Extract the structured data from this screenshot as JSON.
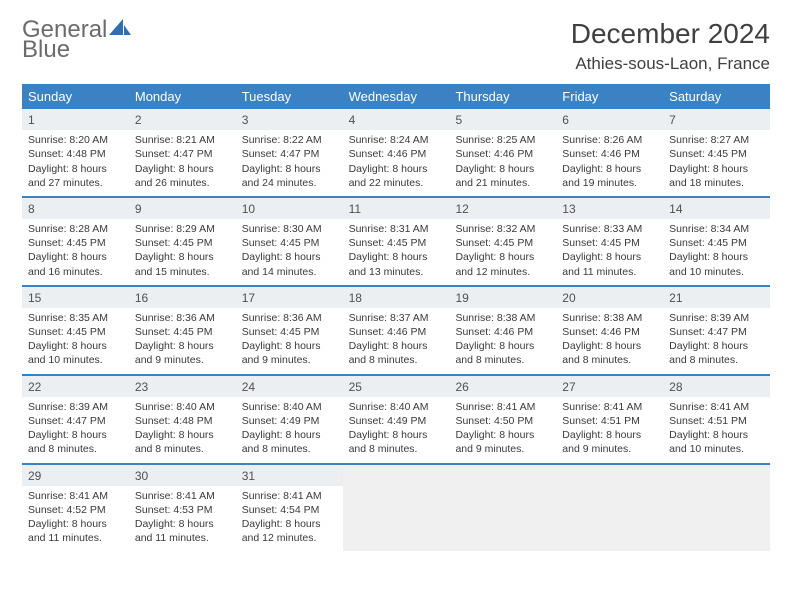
{
  "logo": {
    "text1": "General",
    "text2": "Blue"
  },
  "title": "December 2024",
  "location": "Athies-sous-Laon, France",
  "colors": {
    "header_bg": "#3b82c4",
    "header_text": "#ffffff",
    "daynum_bg": "#eceff1",
    "week_divider": "#3b82c4",
    "text": "#3a3a3a",
    "logo_gray": "#6b6b6b",
    "logo_blue": "#3b7bbf"
  },
  "day_labels": [
    "Sunday",
    "Monday",
    "Tuesday",
    "Wednesday",
    "Thursday",
    "Friday",
    "Saturday"
  ],
  "weeks": [
    [
      {
        "n": "1",
        "sr": "Sunrise: 8:20 AM",
        "ss": "Sunset: 4:48 PM",
        "dl": "Daylight: 8 hours and 27 minutes."
      },
      {
        "n": "2",
        "sr": "Sunrise: 8:21 AM",
        "ss": "Sunset: 4:47 PM",
        "dl": "Daylight: 8 hours and 26 minutes."
      },
      {
        "n": "3",
        "sr": "Sunrise: 8:22 AM",
        "ss": "Sunset: 4:47 PM",
        "dl": "Daylight: 8 hours and 24 minutes."
      },
      {
        "n": "4",
        "sr": "Sunrise: 8:24 AM",
        "ss": "Sunset: 4:46 PM",
        "dl": "Daylight: 8 hours and 22 minutes."
      },
      {
        "n": "5",
        "sr": "Sunrise: 8:25 AM",
        "ss": "Sunset: 4:46 PM",
        "dl": "Daylight: 8 hours and 21 minutes."
      },
      {
        "n": "6",
        "sr": "Sunrise: 8:26 AM",
        "ss": "Sunset: 4:46 PM",
        "dl": "Daylight: 8 hours and 19 minutes."
      },
      {
        "n": "7",
        "sr": "Sunrise: 8:27 AM",
        "ss": "Sunset: 4:45 PM",
        "dl": "Daylight: 8 hours and 18 minutes."
      }
    ],
    [
      {
        "n": "8",
        "sr": "Sunrise: 8:28 AM",
        "ss": "Sunset: 4:45 PM",
        "dl": "Daylight: 8 hours and 16 minutes."
      },
      {
        "n": "9",
        "sr": "Sunrise: 8:29 AM",
        "ss": "Sunset: 4:45 PM",
        "dl": "Daylight: 8 hours and 15 minutes."
      },
      {
        "n": "10",
        "sr": "Sunrise: 8:30 AM",
        "ss": "Sunset: 4:45 PM",
        "dl": "Daylight: 8 hours and 14 minutes."
      },
      {
        "n": "11",
        "sr": "Sunrise: 8:31 AM",
        "ss": "Sunset: 4:45 PM",
        "dl": "Daylight: 8 hours and 13 minutes."
      },
      {
        "n": "12",
        "sr": "Sunrise: 8:32 AM",
        "ss": "Sunset: 4:45 PM",
        "dl": "Daylight: 8 hours and 12 minutes."
      },
      {
        "n": "13",
        "sr": "Sunrise: 8:33 AM",
        "ss": "Sunset: 4:45 PM",
        "dl": "Daylight: 8 hours and 11 minutes."
      },
      {
        "n": "14",
        "sr": "Sunrise: 8:34 AM",
        "ss": "Sunset: 4:45 PM",
        "dl": "Daylight: 8 hours and 10 minutes."
      }
    ],
    [
      {
        "n": "15",
        "sr": "Sunrise: 8:35 AM",
        "ss": "Sunset: 4:45 PM",
        "dl": "Daylight: 8 hours and 10 minutes."
      },
      {
        "n": "16",
        "sr": "Sunrise: 8:36 AM",
        "ss": "Sunset: 4:45 PM",
        "dl": "Daylight: 8 hours and 9 minutes."
      },
      {
        "n": "17",
        "sr": "Sunrise: 8:36 AM",
        "ss": "Sunset: 4:45 PM",
        "dl": "Daylight: 8 hours and 9 minutes."
      },
      {
        "n": "18",
        "sr": "Sunrise: 8:37 AM",
        "ss": "Sunset: 4:46 PM",
        "dl": "Daylight: 8 hours and 8 minutes."
      },
      {
        "n": "19",
        "sr": "Sunrise: 8:38 AM",
        "ss": "Sunset: 4:46 PM",
        "dl": "Daylight: 8 hours and 8 minutes."
      },
      {
        "n": "20",
        "sr": "Sunrise: 8:38 AM",
        "ss": "Sunset: 4:46 PM",
        "dl": "Daylight: 8 hours and 8 minutes."
      },
      {
        "n": "21",
        "sr": "Sunrise: 8:39 AM",
        "ss": "Sunset: 4:47 PM",
        "dl": "Daylight: 8 hours and 8 minutes."
      }
    ],
    [
      {
        "n": "22",
        "sr": "Sunrise: 8:39 AM",
        "ss": "Sunset: 4:47 PM",
        "dl": "Daylight: 8 hours and 8 minutes."
      },
      {
        "n": "23",
        "sr": "Sunrise: 8:40 AM",
        "ss": "Sunset: 4:48 PM",
        "dl": "Daylight: 8 hours and 8 minutes."
      },
      {
        "n": "24",
        "sr": "Sunrise: 8:40 AM",
        "ss": "Sunset: 4:49 PM",
        "dl": "Daylight: 8 hours and 8 minutes."
      },
      {
        "n": "25",
        "sr": "Sunrise: 8:40 AM",
        "ss": "Sunset: 4:49 PM",
        "dl": "Daylight: 8 hours and 8 minutes."
      },
      {
        "n": "26",
        "sr": "Sunrise: 8:41 AM",
        "ss": "Sunset: 4:50 PM",
        "dl": "Daylight: 8 hours and 9 minutes."
      },
      {
        "n": "27",
        "sr": "Sunrise: 8:41 AM",
        "ss": "Sunset: 4:51 PM",
        "dl": "Daylight: 8 hours and 9 minutes."
      },
      {
        "n": "28",
        "sr": "Sunrise: 8:41 AM",
        "ss": "Sunset: 4:51 PM",
        "dl": "Daylight: 8 hours and 10 minutes."
      }
    ],
    [
      {
        "n": "29",
        "sr": "Sunrise: 8:41 AM",
        "ss": "Sunset: 4:52 PM",
        "dl": "Daylight: 8 hours and 11 minutes."
      },
      {
        "n": "30",
        "sr": "Sunrise: 8:41 AM",
        "ss": "Sunset: 4:53 PM",
        "dl": "Daylight: 8 hours and 11 minutes."
      },
      {
        "n": "31",
        "sr": "Sunrise: 8:41 AM",
        "ss": "Sunset: 4:54 PM",
        "dl": "Daylight: 8 hours and 12 minutes."
      },
      null,
      null,
      null,
      null
    ]
  ]
}
